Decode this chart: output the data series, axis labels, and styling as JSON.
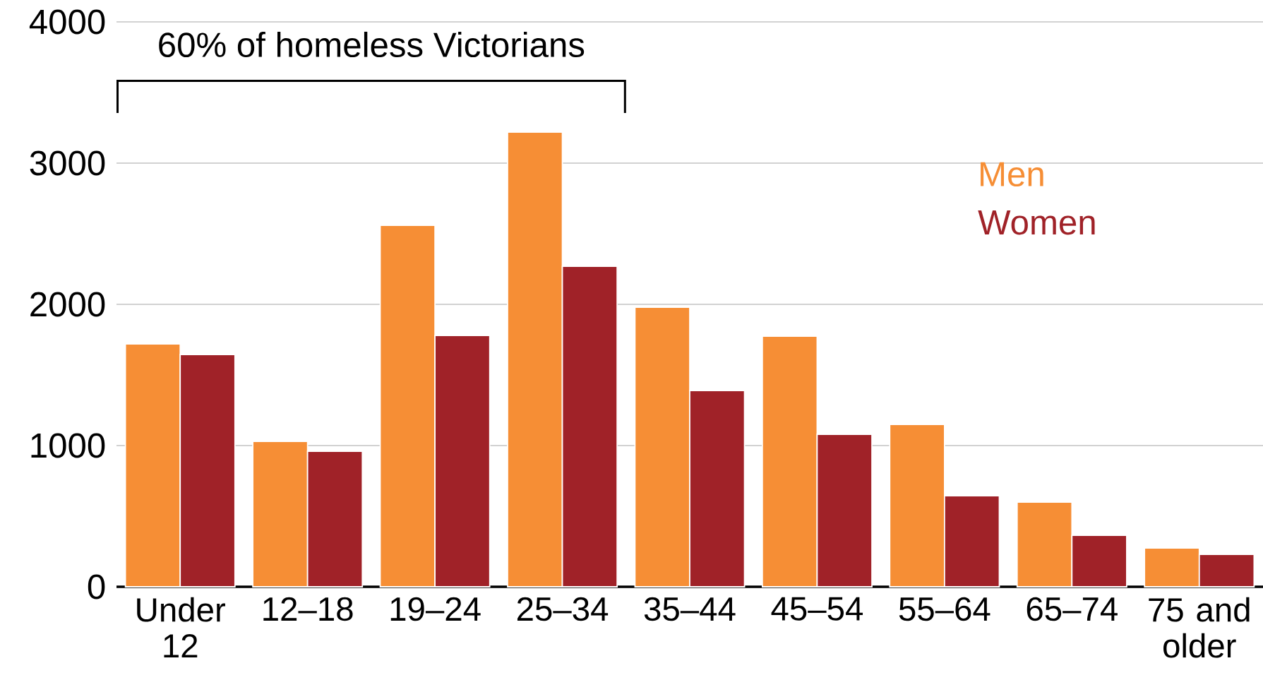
{
  "chart_data": {
    "type": "bar",
    "categories": [
      "Under 12",
      "12–18",
      "19–24",
      "25–34",
      "35–44",
      "45–54",
      "55–64",
      "65–74",
      "75 and older"
    ],
    "series": [
      {
        "name": "Men",
        "color": "#f68e35",
        "values": [
          1720,
          1030,
          2560,
          3220,
          1980,
          1775,
          1150,
          600,
          275
        ]
      },
      {
        "name": "Women",
        "color": "#a02228",
        "values": [
          1645,
          960,
          1780,
          2270,
          1390,
          1080,
          645,
          365,
          230
        ]
      }
    ],
    "ylim": [
      0,
      4000
    ],
    "yticks": [
      0,
      1000,
      2000,
      3000,
      4000
    ],
    "grid": "y",
    "legend": "top right",
    "annotations": [
      "60% of homeless Victorians"
    ]
  }
}
